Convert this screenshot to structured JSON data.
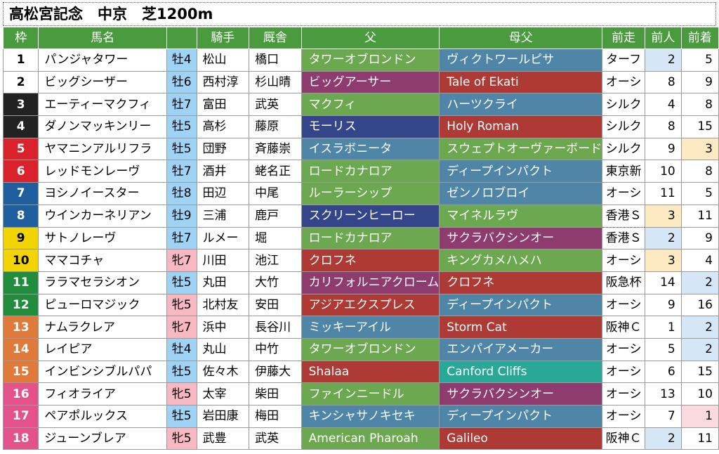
{
  "title": "高松宮記念　中京　芝1200m",
  "headers": {
    "waku": "枠",
    "name": "馬名",
    "sexage": "",
    "jockey": "騎手",
    "stable": "厩舎",
    "sire": "父",
    "damsire": "母父",
    "prev": "前走",
    "prev_pop": "前人",
    "prev_fin": "前着"
  },
  "colors": {
    "header_green": "#4a9a3e",
    "waku": [
      "#ffffff",
      "#ffffff",
      "#222222",
      "#222222",
      "#d9222b",
      "#d9222b",
      "#1f5f9e",
      "#1f5f9e",
      "#f2d400",
      "#f2d400",
      "#218c3b",
      "#218c3b",
      "#e07a3a",
      "#e07a3a",
      "#e07a3a",
      "#e4528c",
      "#e4528c",
      "#e4528c"
    ],
    "horse_male": "#9fd3f5",
    "horse_female": "#f7b8c2",
    "pop_blue": "#d5e7f7",
    "pop_yellow": "#fde9c2",
    "fin_pink": "#fadadd",
    "sire_palette": {
      "green": "#6ca84f",
      "purple": "#8e3b6f",
      "blue": "#35458a",
      "red": "#ad3a35",
      "steel": "#4f86a8",
      "teal": "#2aa897"
    }
  },
  "rows": [
    {
      "no": "1",
      "name": "パンジャタワー",
      "sexage": "牡4",
      "jockey": "松山",
      "stable": "橋口",
      "sire": "タワーオブロンドン",
      "sire_c": "green",
      "damsire": "ヴィクトワールピサ",
      "damsire_c": "steel",
      "prev": "ターフ",
      "pop": "2",
      "fin": "5",
      "pop_bg": "blue",
      "fin_bg": "",
      "sex": "m",
      "prev_dot": false
    },
    {
      "no": "2",
      "name": "ビッグシーザー",
      "sexage": "牡6",
      "jockey": "西村淳",
      "stable": "杉山晴",
      "sire": "ビッグアーサー",
      "sire_c": "purple",
      "damsire": "Tale of Ekati",
      "damsire_c": "red",
      "prev": "オーシ",
      "pop": "8",
      "fin": "9",
      "pop_bg": "",
      "fin_bg": "",
      "sex": "m",
      "prev_dot": false
    },
    {
      "no": "3",
      "name": "エーティーマクフィ",
      "sexage": "牡7",
      "jockey": "富田",
      "stable": "武英",
      "sire": "マクフィ",
      "sire_c": "green",
      "damsire": "ハーツクライ",
      "damsire_c": "steel",
      "prev": "シルク",
      "pop": "4",
      "fin": "8",
      "pop_bg": "",
      "fin_bg": "",
      "sex": "m",
      "prev_dot": false
    },
    {
      "no": "4",
      "name": "ダノンマッキンリー",
      "sexage": "牡5",
      "jockey": "高杉",
      "stable": "藤原",
      "sire": "モーリス",
      "sire_c": "blue",
      "damsire": "Holy Roman",
      "damsire_c": "red",
      "prev": "シルク",
      "pop": "8",
      "fin": "15",
      "pop_bg": "",
      "fin_bg": "",
      "sex": "m",
      "prev_dot": false
    },
    {
      "no": "5",
      "name": "ヤマニンアルリフラ",
      "sexage": "牡5",
      "jockey": "団野",
      "stable": "斉藤崇",
      "sire": "イスラボニータ",
      "sire_c": "steel",
      "damsire": "スウェプトオーヴァーボード",
      "damsire_c": "green",
      "prev": "シルク",
      "pop": "9",
      "fin": "3",
      "pop_bg": "",
      "fin_bg": "yellow",
      "sex": "m",
      "prev_dot": false
    },
    {
      "no": "6",
      "name": "レッドモンレーヴ",
      "sexage": "牡7",
      "jockey": "酒井",
      "stable": "蛯名正",
      "sire": "ロードカナロア",
      "sire_c": "green",
      "damsire": "ディープインパクト",
      "damsire_c": "steel",
      "prev": "東京新",
      "pop": "10",
      "fin": "8",
      "pop_bg": "",
      "fin_bg": "",
      "sex": "m",
      "prev_dot": false
    },
    {
      "no": "7",
      "name": "ヨシノイースター",
      "sexage": "牡8",
      "jockey": "田辺",
      "stable": "中尾",
      "sire": "ルーラーシップ",
      "sire_c": "green",
      "damsire": "ゼンノロブロイ",
      "damsire_c": "steel",
      "prev": "オーシ",
      "pop": "11",
      "fin": "5",
      "pop_bg": "",
      "fin_bg": "",
      "sex": "m",
      "prev_dot": false
    },
    {
      "no": "8",
      "name": "ウインカーネリアン",
      "sexage": "牡9",
      "jockey": "三浦",
      "stable": "鹿戸",
      "sire": "スクリーンヒーロー",
      "sire_c": "blue",
      "damsire": "マイネルラヴ",
      "damsire_c": "green",
      "prev": "香港Ｓ",
      "pop": "3",
      "fin": "11",
      "pop_bg": "yellow",
      "fin_bg": "",
      "sex": "m",
      "prev_dot": true
    },
    {
      "no": "9",
      "name": "サトノレーヴ",
      "sexage": "牡7",
      "jockey": "ルメー",
      "stable": "堀",
      "sire": "ロードカナロア",
      "sire_c": "green",
      "damsire": "サクラバクシンオー",
      "damsire_c": "purple",
      "prev": "香港Ｓ",
      "pop": "2",
      "fin": "9",
      "pop_bg": "blue",
      "fin_bg": "",
      "sex": "m",
      "prev_dot": true
    },
    {
      "no": "10",
      "name": "ママコチャ",
      "sexage": "牝7",
      "jockey": "川田",
      "stable": "池江",
      "sire": "クロフネ",
      "sire_c": "red",
      "damsire": "キングカメハメハ",
      "damsire_c": "green",
      "prev": "オーシ",
      "pop": "3",
      "fin": "4",
      "pop_bg": "yellow",
      "fin_bg": "",
      "sex": "f",
      "prev_dot": false
    },
    {
      "no": "11",
      "name": "ララマセラシオン",
      "sexage": "牡5",
      "jockey": "丸田",
      "stable": "大竹",
      "sire": "カリフォルニアクローム",
      "sire_c": "purple",
      "damsire": "クロフネ",
      "damsire_c": "red",
      "prev": "阪急杯",
      "pop": "14",
      "fin": "2",
      "pop_bg": "",
      "fin_bg": "blue",
      "sex": "m",
      "prev_dot": false
    },
    {
      "no": "12",
      "name": "ピューロマジック",
      "sexage": "牝5",
      "jockey": "北村友",
      "stable": "安田",
      "sire": "アジアエクスプレス",
      "sire_c": "red",
      "damsire": "ディープインパクト",
      "damsire_c": "steel",
      "prev": "オーシ",
      "pop": "9",
      "fin": "16",
      "pop_bg": "",
      "fin_bg": "",
      "sex": "f",
      "prev_dot": false
    },
    {
      "no": "13",
      "name": "ナムラクレア",
      "sexage": "牝7",
      "jockey": "浜中",
      "stable": "長谷川",
      "sire": "ミッキーアイル",
      "sire_c": "steel",
      "damsire": "Storm Cat",
      "damsire_c": "red",
      "prev": "阪神Ｃ",
      "pop": "1",
      "fin": "2",
      "pop_bg": "",
      "fin_bg": "blue",
      "sex": "f",
      "prev_dot": false
    },
    {
      "no": "14",
      "name": "レイピア",
      "sexage": "牡4",
      "jockey": "丸山",
      "stable": "中竹",
      "sire": "タワーオブロンドン",
      "sire_c": "green",
      "damsire": "エンパイアメーカー",
      "damsire_c": "steel",
      "prev": "オーシ",
      "pop": "5",
      "fin": "2",
      "pop_bg": "",
      "fin_bg": "blue",
      "sex": "m",
      "prev_dot": false
    },
    {
      "no": "15",
      "name": "インビンシブルパパ",
      "sexage": "牡5",
      "jockey": "佐々木",
      "stable": "伊藤大",
      "sire": "Shalaa",
      "sire_c": "red",
      "damsire": "Canford Cliffs",
      "damsire_c": "teal",
      "prev": "オーシ",
      "pop": "6",
      "fin": "15",
      "pop_bg": "",
      "fin_bg": "",
      "sex": "m",
      "prev_dot": false
    },
    {
      "no": "16",
      "name": "フィオライア",
      "sexage": "牝5",
      "jockey": "太宰",
      "stable": "柴田",
      "sire": "ファインニードル",
      "sire_c": "green",
      "damsire": "サクラバクシンオー",
      "damsire_c": "purple",
      "prev": "オーシ",
      "pop": "13",
      "fin": "10",
      "pop_bg": "",
      "fin_bg": "",
      "sex": "f",
      "prev_dot": false
    },
    {
      "no": "17",
      "name": "ペアポルックス",
      "sexage": "牡5",
      "jockey": "岩田康",
      "stable": "梅田",
      "sire": "キンシャサノキセキ",
      "sire_c": "steel",
      "damsire": "ディープインパクト",
      "damsire_c": "steel",
      "prev": "オーシ",
      "pop": "7",
      "fin": "1",
      "pop_bg": "",
      "fin_bg": "pink",
      "sex": "m",
      "prev_dot": false
    },
    {
      "no": "18",
      "name": "ジューンブレア",
      "sexage": "牝5",
      "jockey": "武豊",
      "stable": "武英",
      "sire": "American Pharoah",
      "sire_c": "green",
      "damsire": "Galileo",
      "damsire_c": "red",
      "prev": "阪神Ｃ",
      "pop": "2",
      "fin": "11",
      "pop_bg": "blue",
      "fin_bg": "",
      "sex": "f",
      "prev_dot": false
    }
  ]
}
